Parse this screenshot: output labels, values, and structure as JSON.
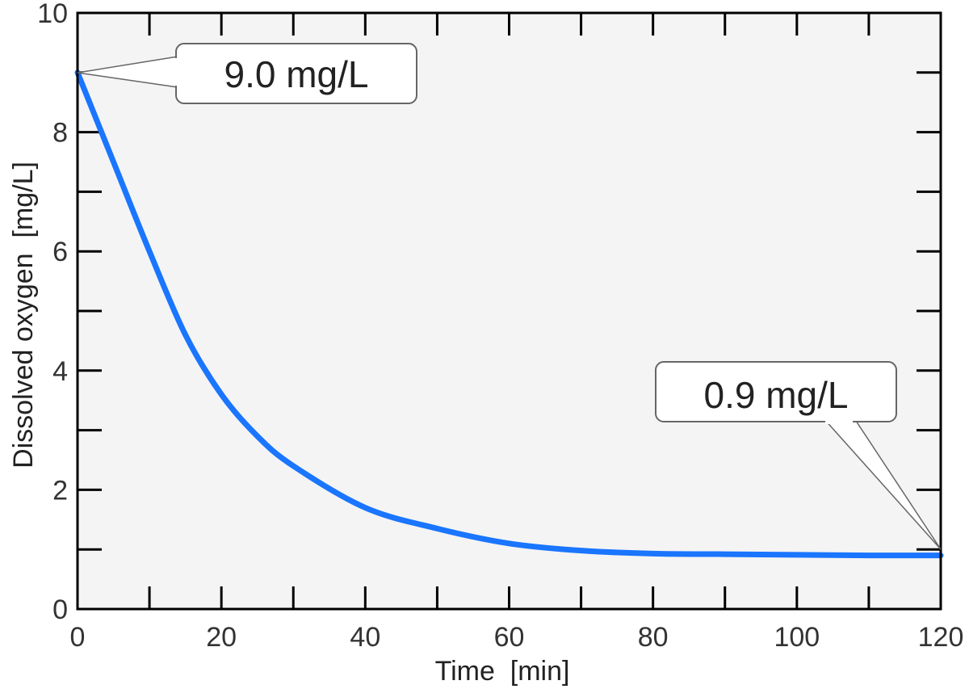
{
  "chart_data": {
    "type": "line",
    "xlabel": "Time  [min]",
    "ylabel": "Dissolved oxygen  [mg/L]",
    "xlim": [
      0,
      120
    ],
    "ylim": [
      0,
      10
    ],
    "x_ticks": [
      0,
      20,
      40,
      60,
      80,
      100,
      120
    ],
    "y_ticks": [
      0,
      2,
      4,
      6,
      8,
      10
    ],
    "grid": false,
    "colors": {
      "line": "#1a75ff",
      "plot_background": "#f4f4f4",
      "frame": "#000000"
    },
    "series": [
      {
        "x": [
          0,
          5,
          10,
          15,
          20,
          25,
          30,
          40,
          50,
          60,
          70,
          80,
          90,
          100,
          110,
          120
        ],
        "values": [
          9.0,
          7.5,
          6.0,
          4.6,
          3.6,
          2.9,
          2.4,
          1.7,
          1.35,
          1.1,
          0.98,
          0.93,
          0.92,
          0.91,
          0.9,
          0.9
        ]
      }
    ],
    "annotations": [
      {
        "text": "9.0 mg/L",
        "x": 0,
        "y": 9.0
      },
      {
        "text": "0.9 mg/L",
        "x": 120,
        "y": 0.9
      }
    ]
  }
}
